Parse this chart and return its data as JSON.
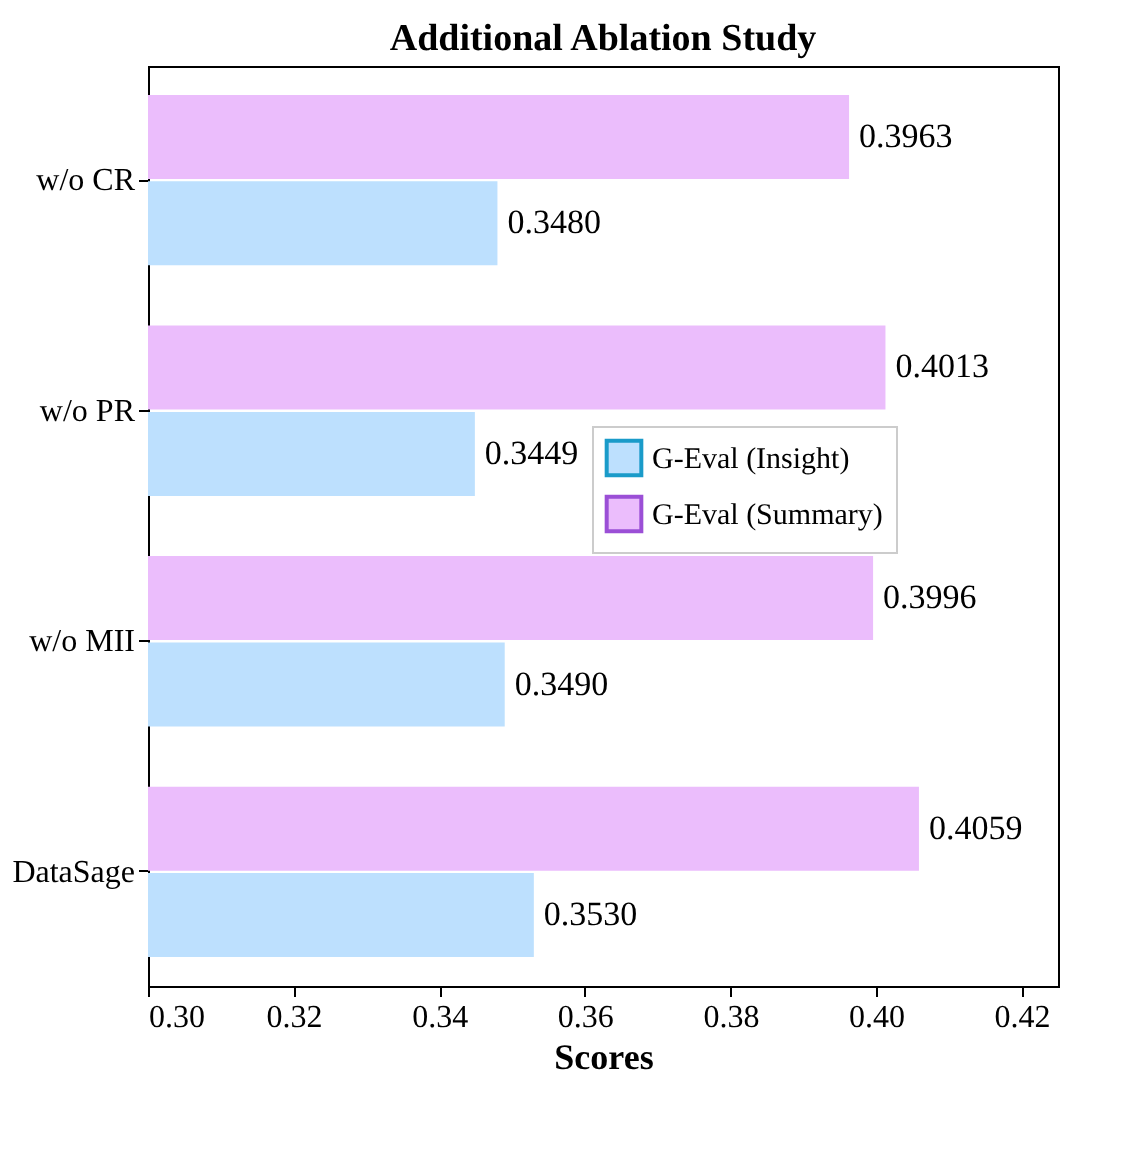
{
  "chart_data": {
    "type": "bar",
    "orientation": "horizontal",
    "title": "Additional Ablation Study",
    "xlabel": "Scores",
    "categories": [
      "w/o CR",
      "w/o PR",
      "w/o MII",
      "DataSage"
    ],
    "series": [
      {
        "name": "G-Eval (Insight)",
        "color": "#bde0fe",
        "values": [
          0.348,
          0.3449,
          0.349,
          0.353
        ],
        "value_labels": [
          "0.3480",
          "0.3449",
          "0.3490",
          "0.3530"
        ]
      },
      {
        "name": "G-Eval (Summary)",
        "color": "#ebbdfc",
        "values": [
          0.3963,
          0.4013,
          0.3996,
          0.4059
        ],
        "value_labels": [
          "0.3963",
          "0.4013",
          "0.3996",
          "0.4059"
        ]
      }
    ],
    "xlim": [
      0.3,
      0.425
    ],
    "xticks": [
      {
        "value": 0.3,
        "label": "0.30"
      },
      {
        "value": 0.32,
        "label": "0.32"
      },
      {
        "value": 0.34,
        "label": "0.34"
      },
      {
        "value": 0.36,
        "label": "0.36"
      },
      {
        "value": 0.38,
        "label": "0.38"
      },
      {
        "value": 0.4,
        "label": "0.40"
      },
      {
        "value": 0.42,
        "label": "0.42"
      }
    ],
    "grid": false,
    "legend": "right"
  }
}
